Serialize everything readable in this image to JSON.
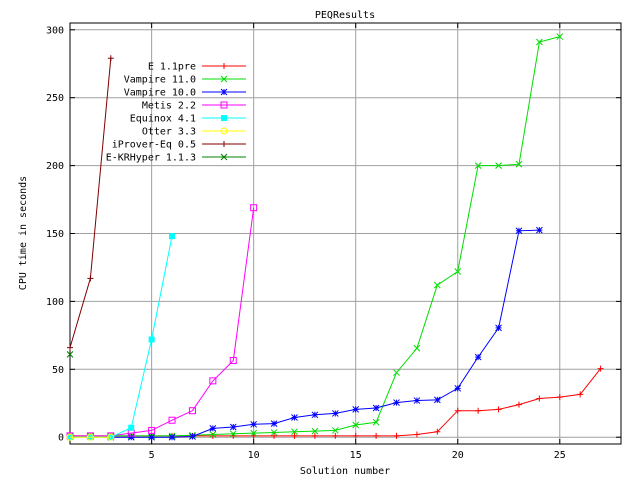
{
  "chart_data": {
    "type": "line",
    "title": "PEQResults",
    "xlabel": "Solution number",
    "ylabel": "CPU time in seconds",
    "xlim": [
      1,
      28
    ],
    "ylim": [
      -5,
      305
    ],
    "xticks": [
      5,
      10,
      15,
      20,
      25
    ],
    "yticks": [
      0,
      50,
      100,
      150,
      200,
      250,
      300
    ],
    "grid": true,
    "legend_position": "top-left",
    "series": [
      {
        "name": "E 1.1pre",
        "color": "#ff0000",
        "marker": "plus",
        "x": [
          1,
          2,
          3,
          4,
          5,
          6,
          7,
          8,
          9,
          10,
          11,
          12,
          13,
          14,
          15,
          16,
          17,
          18,
          19,
          20,
          21,
          22,
          23,
          24,
          25,
          26,
          27
        ],
        "y": [
          1,
          1,
          1,
          1,
          1,
          1,
          1,
          1,
          1,
          1,
          1,
          1,
          1,
          1,
          1,
          1,
          1,
          2,
          4,
          19.5,
          19.5,
          20.5,
          24,
          28.5,
          29.5,
          31.5,
          50.5
        ]
      },
      {
        "name": "Vampire 11.0",
        "color": "#00dd00",
        "marker": "x",
        "x": [
          1,
          2,
          3,
          4,
          5,
          6,
          7,
          8,
          9,
          10,
          11,
          12,
          13,
          14,
          15,
          16,
          17,
          18,
          19,
          20,
          21,
          22,
          23,
          24,
          25
        ],
        "y": [
          1,
          1,
          1,
          1,
          1,
          1,
          1.5,
          2,
          2.5,
          3,
          3.5,
          4,
          4.5,
          5,
          9,
          11,
          47.5,
          65.5,
          112,
          122,
          200,
          200,
          201,
          291,
          295
        ]
      },
      {
        "name": "Vampire 10.0",
        "color": "#0000ff",
        "marker": "star",
        "x": [
          3,
          4,
          5,
          6,
          7,
          8,
          9,
          10,
          11,
          12,
          13,
          14,
          15,
          16,
          17,
          18,
          19,
          20,
          21,
          22,
          23,
          24
        ],
        "y": [
          0,
          0,
          0,
          0,
          0.5,
          6.5,
          7.5,
          9.5,
          10,
          14.5,
          16.5,
          17.5,
          20.5,
          21.5,
          25.5,
          27,
          27.5,
          36,
          59,
          80.5,
          152,
          152.5
        ]
      },
      {
        "name": "Metis 2.2",
        "color": "#ff00ff",
        "marker": "square",
        "x": [
          1,
          2,
          3,
          4,
          5,
          6,
          7,
          8,
          9,
          10
        ],
        "y": [
          1,
          1,
          1,
          3,
          5,
          12.5,
          19.5,
          41.5,
          56.5,
          169
        ]
      },
      {
        "name": "Equinox 4.1",
        "color": "#00ffff",
        "marker": "filled-square",
        "x": [
          1,
          2,
          3,
          4,
          5,
          6
        ],
        "y": [
          0,
          0,
          0,
          7,
          72,
          148
        ]
      },
      {
        "name": "Otter 3.3",
        "color": "#ffff00",
        "marker": "circle",
        "x": [
          1,
          2,
          3
        ],
        "y": [
          0,
          0,
          0
        ]
      },
      {
        "name": "iProver-Eq 0.5",
        "color": "#800000",
        "marker": "plus",
        "x": [
          1,
          2,
          3
        ],
        "y": [
          66,
          117,
          279
        ]
      },
      {
        "name": "E-KRHyper 1.1.3",
        "color": "#008000",
        "marker": "x",
        "x": [
          1
        ],
        "y": [
          61
        ]
      }
    ]
  }
}
